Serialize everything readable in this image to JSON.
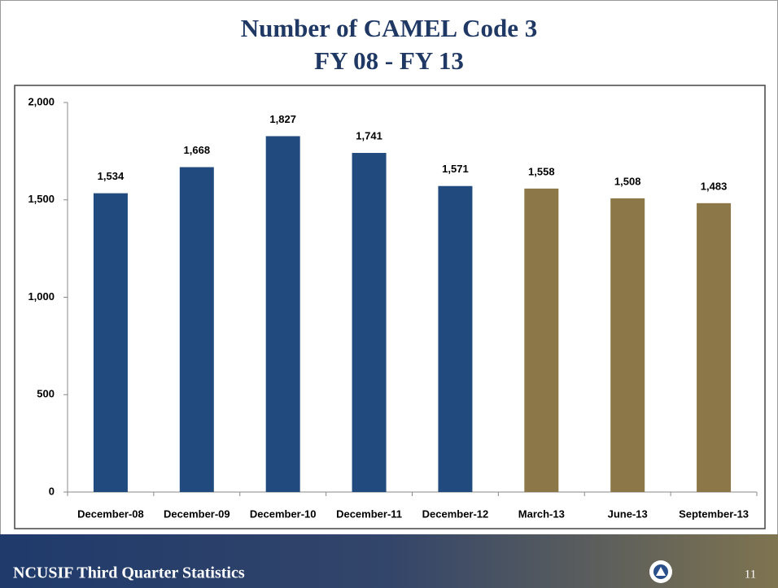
{
  "chart_data": {
    "type": "bar",
    "title_lines": [
      "Number of CAMEL Code 3",
      "FY 08 - FY 13"
    ],
    "categories": [
      "December-08",
      "December-09",
      "December-10",
      "December-11",
      "December-12",
      "March-13",
      "June-13",
      "September-13"
    ],
    "values": [
      1534,
      1668,
      1827,
      1741,
      1571,
      1558,
      1508,
      1483
    ],
    "value_labels": [
      "1,534",
      "1,668",
      "1,827",
      "1,741",
      "1,571",
      "1,558",
      "1,508",
      "1,483"
    ],
    "colors": [
      "#214a7e",
      "#214a7e",
      "#214a7e",
      "#214a7e",
      "#214a7e",
      "#8b7747",
      "#8b7747",
      "#8b7747"
    ],
    "ylim": [
      0,
      2000
    ],
    "yticks": [
      0,
      500,
      {
        "value": 1000,
        "label": "1,000"
      },
      {
        "value": 1500,
        "label": "1,500"
      },
      {
        "value": 2000,
        "label": "2,000"
      }
    ],
    "grid": false
  },
  "footer": {
    "text": "NCUSIF Third Quarter Statistics",
    "page_number": "11"
  }
}
